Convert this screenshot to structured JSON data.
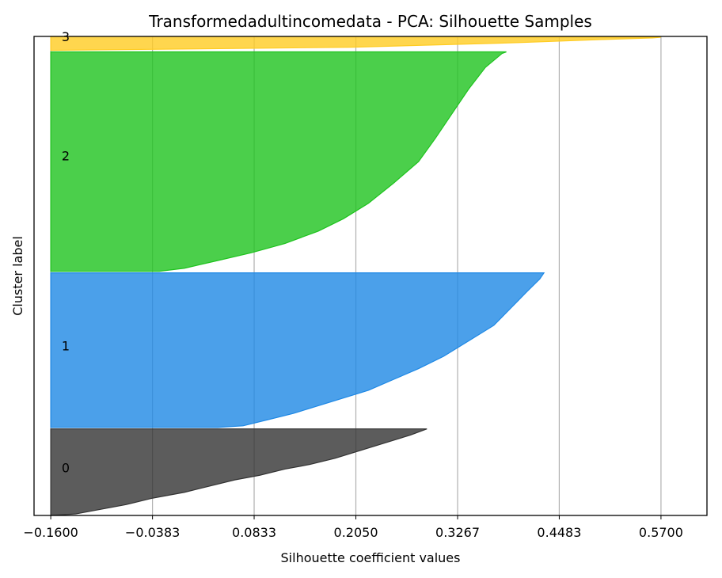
{
  "chart_data": {
    "type": "area",
    "title": "Transformedadultincomedata - PCA: Silhouette Samples",
    "xlabel": "Silhouette coefficient values",
    "ylabel": "Cluster label",
    "xlim": [
      -0.18,
      0.625
    ],
    "ylim": [
      0,
      3.1
    ],
    "xticks": [
      -0.16,
      -0.0383,
      0.0833,
      0.205,
      0.3267,
      0.4483,
      0.57
    ],
    "xtick_labels": [
      "−0.1600",
      "−0.0383",
      "0.0833",
      "0.2050",
      "0.3267",
      "0.4483",
      "0.5700"
    ],
    "grid": "vertical",
    "clusters": [
      {
        "label": "0",
        "color": "#333333",
        "band": [
          0.0,
          0.56
        ],
        "label_y": 0.31,
        "profile": [
          [
            -0.16,
            0.0
          ],
          [
            -0.13,
            0.01
          ],
          [
            -0.1,
            0.04
          ],
          [
            -0.07,
            0.07
          ],
          [
            -0.04,
            0.11
          ],
          [
            -0.02,
            0.13
          ],
          [
            0.0,
            0.15
          ],
          [
            0.03,
            0.19
          ],
          [
            0.06,
            0.23
          ],
          [
            0.09,
            0.26
          ],
          [
            0.12,
            0.3
          ],
          [
            0.15,
            0.33
          ],
          [
            0.18,
            0.37
          ],
          [
            0.21,
            0.42
          ],
          [
            0.24,
            0.47
          ],
          [
            0.27,
            0.52
          ],
          [
            0.29,
            0.56
          ]
        ]
      },
      {
        "label": "1",
        "color": "#1e88e5",
        "band": [
          0.57,
          1.57
        ],
        "label_y": 1.1,
        "profile": [
          [
            -0.16,
            0.57
          ],
          [
            0.04,
            0.57
          ],
          [
            0.07,
            0.58
          ],
          [
            0.1,
            0.62
          ],
          [
            0.13,
            0.66
          ],
          [
            0.16,
            0.71
          ],
          [
            0.19,
            0.76
          ],
          [
            0.22,
            0.81
          ],
          [
            0.25,
            0.88
          ],
          [
            0.28,
            0.95
          ],
          [
            0.31,
            1.03
          ],
          [
            0.34,
            1.13
          ],
          [
            0.37,
            1.23
          ],
          [
            0.39,
            1.34
          ],
          [
            0.41,
            1.45
          ],
          [
            0.425,
            1.53
          ],
          [
            0.43,
            1.57
          ]
        ]
      },
      {
        "label": "2",
        "color": "#1ec31e",
        "band": [
          1.58,
          3.0
        ],
        "label_y": 2.33,
        "profile": [
          [
            -0.16,
            1.58
          ],
          [
            -0.03,
            1.58
          ],
          [
            0.0,
            1.6
          ],
          [
            0.04,
            1.65
          ],
          [
            0.08,
            1.7
          ],
          [
            0.12,
            1.76
          ],
          [
            0.16,
            1.84
          ],
          [
            0.19,
            1.92
          ],
          [
            0.22,
            2.02
          ],
          [
            0.25,
            2.15
          ],
          [
            0.28,
            2.29
          ],
          [
            0.3,
            2.44
          ],
          [
            0.32,
            2.6
          ],
          [
            0.34,
            2.76
          ],
          [
            0.36,
            2.9
          ],
          [
            0.38,
            2.99
          ],
          [
            0.385,
            3.0
          ]
        ]
      },
      {
        "label": "3",
        "color": "#ffcc22",
        "band": [
          3.01,
          3.1
        ],
        "label_y": 3.1,
        "profile": [
          [
            -0.16,
            3.01
          ],
          [
            0.2,
            3.03
          ],
          [
            0.4,
            3.06
          ],
          [
            0.5,
            3.08
          ],
          [
            0.56,
            3.09
          ],
          [
            0.57,
            3.095
          ]
        ]
      }
    ]
  }
}
